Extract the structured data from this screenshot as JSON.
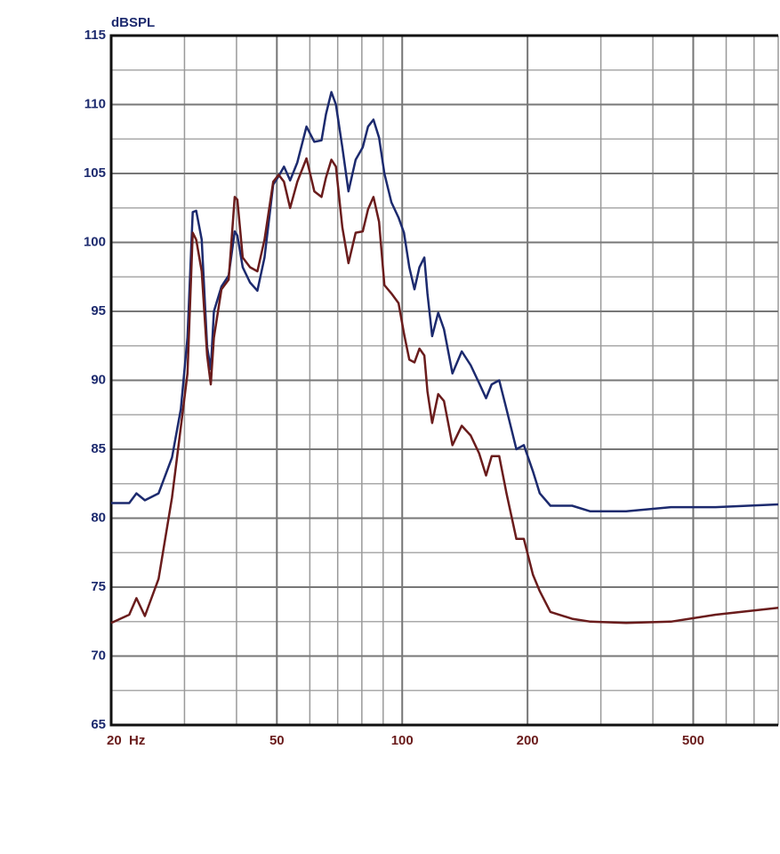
{
  "chart_data": {
    "type": "line",
    "ylabel": "dBSPL",
    "log_x": true,
    "grid": true,
    "xlim": [
      20,
      800
    ],
    "ylim": [
      65,
      115
    ],
    "xticks": [
      {
        "value": 20,
        "label": "20  Hz"
      },
      50,
      100,
      200,
      500
    ],
    "yticks": [
      65,
      70,
      75,
      80,
      85,
      90,
      95,
      100,
      105,
      110,
      115
    ],
    "xgrid": [
      30,
      40,
      50,
      60,
      70,
      80,
      90,
      100,
      200,
      300,
      400,
      500,
      600,
      700,
      800
    ],
    "ygrid": [
      67.5,
      72.5,
      77.5,
      82.5,
      87.5,
      92.5,
      97.5,
      102.5,
      107.5,
      112.5
    ],
    "x": [
      20,
      22.1,
      23.0,
      24.1,
      26.0,
      28.0,
      29.4,
      30.5,
      31.4,
      32.0,
      33.0,
      34.0,
      34.7,
      35.3,
      36.8,
      38.3,
      39.6,
      40.2,
      41.4,
      43.1,
      44.9,
      46.7,
      49.0,
      50.5,
      52.0,
      53.8,
      56.0,
      58.9,
      61.5,
      64.0,
      65.6,
      67.6,
      69.3,
      71.8,
      74.3,
      77.3,
      80.4,
      82.8,
      85.3,
      88.0,
      90.6,
      94.2,
      98.0,
      101,
      104,
      107,
      110,
      113,
      115,
      118,
      122,
      126,
      132,
      139,
      146,
      153,
      159,
      164,
      171,
      178,
      188,
      196,
      206,
      214,
      227,
      256,
      283,
      345,
      442,
      566,
      800
    ],
    "series": [
      {
        "name": "blue",
        "color": "#1c2a6e",
        "values": [
          81.1,
          81.1,
          81.8,
          81.3,
          81.8,
          84.4,
          87.9,
          93.1,
          102.2,
          102.3,
          100.2,
          92.4,
          90.8,
          95,
          96.8,
          97.6,
          100.8,
          100.5,
          98.2,
          97.1,
          96.5,
          98.9,
          104.2,
          104.8,
          105.5,
          104.5,
          105.8,
          108.4,
          107.3,
          107.4,
          109.3,
          110.9,
          110,
          106.9,
          103.7,
          106,
          106.9,
          108.4,
          108.9,
          107.6,
          105,
          102.9,
          101.8,
          100.7,
          98.2,
          96.6,
          98.2,
          98.9,
          96.3,
          93.2,
          94.9,
          93.7,
          90.5,
          92.1,
          91.1,
          89.8,
          88.7,
          89.7,
          90,
          87.9,
          85,
          85.3,
          83.4,
          81.8,
          80.9,
          80.9,
          80.5,
          80.5,
          80.8,
          80.8,
          81
        ]
      },
      {
        "name": "red",
        "color": "#6a1c1c",
        "values": [
          72.4,
          73,
          74.2,
          72.9,
          75.6,
          81.5,
          86.6,
          90.5,
          100.7,
          100.2,
          97.9,
          91.8,
          89.7,
          93.1,
          96.6,
          97.3,
          103.3,
          103.1,
          98.9,
          98.2,
          97.9,
          100.2,
          104.4,
          104.9,
          104.4,
          102.5,
          104.4,
          106.1,
          103.7,
          103.3,
          104.7,
          106,
          105.5,
          101.1,
          98.5,
          100.7,
          100.8,
          102.4,
          103.3,
          101.5,
          96.9,
          96.3,
          95.6,
          93.4,
          91.5,
          91.3,
          92.3,
          91.8,
          89.2,
          86.9,
          89,
          88.5,
          85.3,
          86.7,
          86,
          84.7,
          83.1,
          84.5,
          84.5,
          81.8,
          78.5,
          78.5,
          75.9,
          74.7,
          73.2,
          72.7,
          72.5,
          72.4,
          72.5,
          73,
          73.5
        ]
      }
    ]
  }
}
